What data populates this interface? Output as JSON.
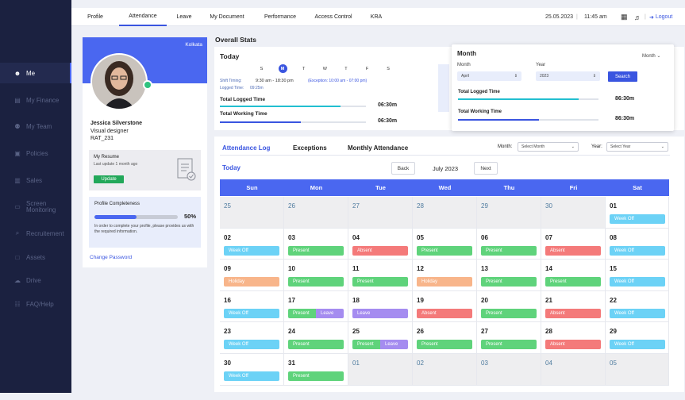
{
  "sidebar": {
    "items": [
      {
        "label": "Me",
        "icon": "person-icon",
        "glyph": "☻"
      },
      {
        "label": "My Finance",
        "icon": "finance-icon",
        "glyph": "▤"
      },
      {
        "label": "My Team",
        "icon": "team-icon",
        "glyph": "⚉"
      },
      {
        "label": "Policies",
        "icon": "policies-icon",
        "glyph": "▣"
      },
      {
        "label": "Sales",
        "icon": "sales-icon",
        "glyph": "▥"
      },
      {
        "label": "Screen Monitoring",
        "icon": "monitor-icon",
        "glyph": "▭"
      },
      {
        "label": "Recruitement",
        "icon": "recruitment-icon",
        "glyph": "⌕"
      },
      {
        "label": "Assets",
        "icon": "assets-icon",
        "glyph": "□"
      },
      {
        "label": "Drive",
        "icon": "drive-icon",
        "glyph": "☁"
      },
      {
        "label": "FAQ/Help",
        "icon": "help-icon",
        "glyph": "☷"
      }
    ]
  },
  "nav": {
    "tabs": [
      "Profile",
      "Attendance",
      "Leave",
      "My Document",
      "Performance",
      "Access Control",
      "KRA"
    ],
    "date": "25.05.2023",
    "time": "11:45 am",
    "logout": "Logout"
  },
  "profile": {
    "location": "Kolkata",
    "name": "Jessica Silverstone",
    "role": "Visual designer",
    "id": "RAT_231",
    "resume_title": "My Resume",
    "resume_updated": "Last update 1 month ago",
    "update_button": "Update",
    "completeness_title": "Profile Completeness",
    "completeness_value": "50%",
    "completeness_fraction": 0.5,
    "completeness_note": "In order to complete your profile, please provides us with the required information.",
    "change_password": "Change Password"
  },
  "stats": {
    "title": "Overall Stats",
    "today_title": "Today",
    "weekdays": [
      "S",
      "M",
      "T",
      "W",
      "T",
      "F",
      "S"
    ],
    "shift_label": "Shift Timing:",
    "shift_value": "9:30 am - 18:30 pm",
    "exception": "(Exception: 10:00 am - 07:00 pm)",
    "logged_label": "Logged Time:",
    "logged_value": "09:25m",
    "total_logged_label": "Total Logged Time",
    "total_logged_value": "06:30m",
    "total_working_label": "Total Working Time",
    "total_working_value": "06:30m"
  },
  "month_panel": {
    "title": "Month",
    "mode": "Month",
    "month_label": "Month",
    "month_value": "April",
    "year_label": "Year",
    "year_value": "2023",
    "search": "Search",
    "total_logged_label": "Total Logged Time",
    "total_logged_value": "86:30m",
    "total_working_label": "Total Working Time",
    "total_working_value": "86:30m"
  },
  "attendance": {
    "tabs": [
      "Attendance Log",
      "Exceptions",
      "Monthly Attendance"
    ],
    "month_label": "Month:",
    "month_select": "Select Month",
    "year_label": "Year:",
    "year_select": "Select Year",
    "today": "Today",
    "back": "Back",
    "month_title": "July 2023",
    "next": "Next",
    "days": [
      "Sun",
      "Mon",
      "Tue",
      "Wed",
      "Thu",
      "Fri",
      "Sat"
    ]
  },
  "colors": {
    "accent": "#4a67f0",
    "present": "#5fd37b",
    "absent": "#f47a7a",
    "weekoff": "#6cd2f6",
    "holiday": "#f8b58a",
    "leave": "#a58cf0"
  },
  "calendar": [
    {
      "d": "25",
      "gray": true
    },
    {
      "d": "26",
      "gray": true
    },
    {
      "d": "27",
      "gray": true
    },
    {
      "d": "28",
      "gray": true
    },
    {
      "d": "29",
      "gray": true
    },
    {
      "d": "30",
      "gray": true
    },
    {
      "d": "01",
      "b": [
        [
          "Week Off",
          "weekoff"
        ]
      ]
    },
    {
      "d": "02",
      "b": [
        [
          "Week Off",
          "weekoff"
        ]
      ]
    },
    {
      "d": "03",
      "b": [
        [
          "Present",
          "present"
        ]
      ]
    },
    {
      "d": "04",
      "b": [
        [
          "Absent",
          "absent"
        ]
      ]
    },
    {
      "d": "05",
      "b": [
        [
          "Present",
          "present"
        ]
      ]
    },
    {
      "d": "06",
      "b": [
        [
          "Present",
          "present"
        ]
      ]
    },
    {
      "d": "07",
      "b": [
        [
          "Absent",
          "absent"
        ]
      ]
    },
    {
      "d": "08",
      "b": [
        [
          "Week Off",
          "weekoff"
        ]
      ]
    },
    {
      "d": "09",
      "b": [
        [
          "Holiday",
          "holiday"
        ]
      ]
    },
    {
      "d": "10",
      "b": [
        [
          "Present",
          "present"
        ]
      ]
    },
    {
      "d": "11",
      "b": [
        [
          "Present",
          "present"
        ]
      ]
    },
    {
      "d": "12",
      "b": [
        [
          "Holiday",
          "holiday"
        ]
      ]
    },
    {
      "d": "13",
      "b": [
        [
          "Present",
          "present"
        ]
      ]
    },
    {
      "d": "14",
      "b": [
        [
          "Present",
          "present"
        ]
      ]
    },
    {
      "d": "15",
      "b": [
        [
          "Week Off",
          "weekoff"
        ]
      ]
    },
    {
      "d": "16",
      "b": [
        [
          "Week Off",
          "weekoff"
        ]
      ]
    },
    {
      "d": "17",
      "b": [
        [
          "Present",
          "present"
        ],
        [
          "Leave",
          "leave"
        ]
      ]
    },
    {
      "d": "18",
      "b": [
        [
          "Leave",
          "leave"
        ]
      ]
    },
    {
      "d": "19",
      "b": [
        [
          "Absent",
          "absent"
        ]
      ]
    },
    {
      "d": "20",
      "b": [
        [
          "Present",
          "present"
        ]
      ]
    },
    {
      "d": "21",
      "b": [
        [
          "Absent",
          "absent"
        ]
      ]
    },
    {
      "d": "22",
      "b": [
        [
          "Week Off",
          "weekoff"
        ]
      ]
    },
    {
      "d": "23",
      "b": [
        [
          "Week Off",
          "weekoff"
        ]
      ]
    },
    {
      "d": "24",
      "b": [
        [
          "Present",
          "present"
        ]
      ]
    },
    {
      "d": "25",
      "b": [
        [
          "Present",
          "present"
        ],
        [
          "Leave",
          "leave"
        ]
      ]
    },
    {
      "d": "26",
      "b": [
        [
          "Present",
          "present"
        ]
      ]
    },
    {
      "d": "27",
      "b": [
        [
          "Present",
          "present"
        ]
      ]
    },
    {
      "d": "28",
      "b": [
        [
          "Absent",
          "absent"
        ]
      ]
    },
    {
      "d": "29",
      "b": [
        [
          "Week Off",
          "weekoff"
        ]
      ]
    },
    {
      "d": "30",
      "b": [
        [
          "Week Off",
          "weekoff"
        ]
      ]
    },
    {
      "d": "31",
      "b": [
        [
          "Present",
          "present"
        ]
      ]
    },
    {
      "d": "01",
      "gray": true
    },
    {
      "d": "02",
      "gray": true
    },
    {
      "d": "03",
      "gray": true
    },
    {
      "d": "04",
      "gray": true
    },
    {
      "d": "05",
      "gray": true
    }
  ]
}
